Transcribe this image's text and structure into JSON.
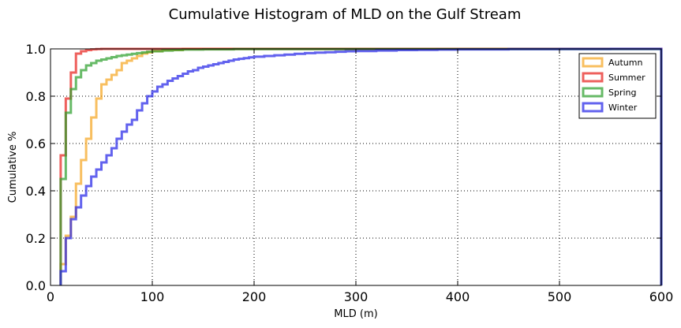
{
  "chart_data": {
    "type": "line",
    "title": "Cumulative Histogram of MLD on the Gulf Stream",
    "xlabel": "MLD (m)",
    "ylabel": "Cumulative %",
    "xlim": [
      0,
      600
    ],
    "ylim": [
      0,
      1.0
    ],
    "xticks": [
      "0",
      "100",
      "200",
      "300",
      "400",
      "500",
      "600"
    ],
    "yticks": [
      "0.0",
      "0.2",
      "0.4",
      "0.6",
      "0.8",
      "1.0"
    ],
    "grid": true,
    "legend_position": "top-right",
    "series": [
      {
        "name": "Autumn",
        "color": "#f5a623",
        "x": [
          10,
          15,
          20,
          25,
          30,
          35,
          40,
          45,
          50,
          55,
          60,
          65,
          70,
          75,
          80,
          85,
          90,
          95,
          100,
          110,
          130,
          600
        ],
        "y": [
          0.09,
          0.21,
          0.29,
          0.43,
          0.53,
          0.62,
          0.71,
          0.79,
          0.85,
          0.87,
          0.89,
          0.91,
          0.94,
          0.95,
          0.96,
          0.97,
          0.98,
          0.985,
          0.99,
          0.995,
          1.0,
          1.0
        ]
      },
      {
        "name": "Summer",
        "color": "#e8231f",
        "x": [
          10,
          15,
          20,
          25,
          30,
          35,
          40,
          45,
          50,
          600
        ],
        "y": [
          0.55,
          0.79,
          0.9,
          0.98,
          0.99,
          0.995,
          0.998,
          0.999,
          1.0,
          1.0
        ]
      },
      {
        "name": "Spring",
        "color": "#2ca02c",
        "x": [
          10,
          15,
          20,
          25,
          30,
          35,
          40,
          45,
          50,
          55,
          60,
          65,
          70,
          75,
          80,
          85,
          90,
          95,
          100,
          110,
          120,
          130,
          150,
          180,
          600
        ],
        "y": [
          0.45,
          0.73,
          0.83,
          0.88,
          0.91,
          0.93,
          0.94,
          0.95,
          0.955,
          0.96,
          0.965,
          0.97,
          0.973,
          0.976,
          0.979,
          0.982,
          0.985,
          0.988,
          0.99,
          0.993,
          0.995,
          0.997,
          0.998,
          0.999,
          1.0
        ]
      },
      {
        "name": "Winter",
        "color": "#2525e8",
        "x": [
          10,
          15,
          20,
          25,
          30,
          35,
          40,
          45,
          50,
          55,
          60,
          65,
          70,
          75,
          80,
          85,
          90,
          95,
          100,
          105,
          110,
          115,
          120,
          125,
          130,
          135,
          140,
          145,
          150,
          155,
          160,
          165,
          170,
          175,
          180,
          185,
          190,
          195,
          200,
          210,
          220,
          230,
          240,
          250,
          260,
          270,
          280,
          290,
          300,
          320,
          340,
          360,
          380,
          400,
          450,
          500,
          550,
          600
        ],
        "y": [
          0.06,
          0.2,
          0.28,
          0.33,
          0.38,
          0.42,
          0.46,
          0.49,
          0.52,
          0.55,
          0.58,
          0.62,
          0.65,
          0.68,
          0.7,
          0.74,
          0.77,
          0.8,
          0.82,
          0.84,
          0.85,
          0.865,
          0.875,
          0.885,
          0.895,
          0.905,
          0.91,
          0.92,
          0.925,
          0.93,
          0.935,
          0.94,
          0.945,
          0.95,
          0.955,
          0.958,
          0.961,
          0.964,
          0.967,
          0.97,
          0.973,
          0.976,
          0.979,
          0.982,
          0.984,
          0.986,
          0.988,
          0.99,
          0.991,
          0.993,
          0.995,
          0.996,
          0.997,
          0.998,
          0.999,
          0.9995,
          1.0,
          1.0
        ]
      }
    ]
  }
}
